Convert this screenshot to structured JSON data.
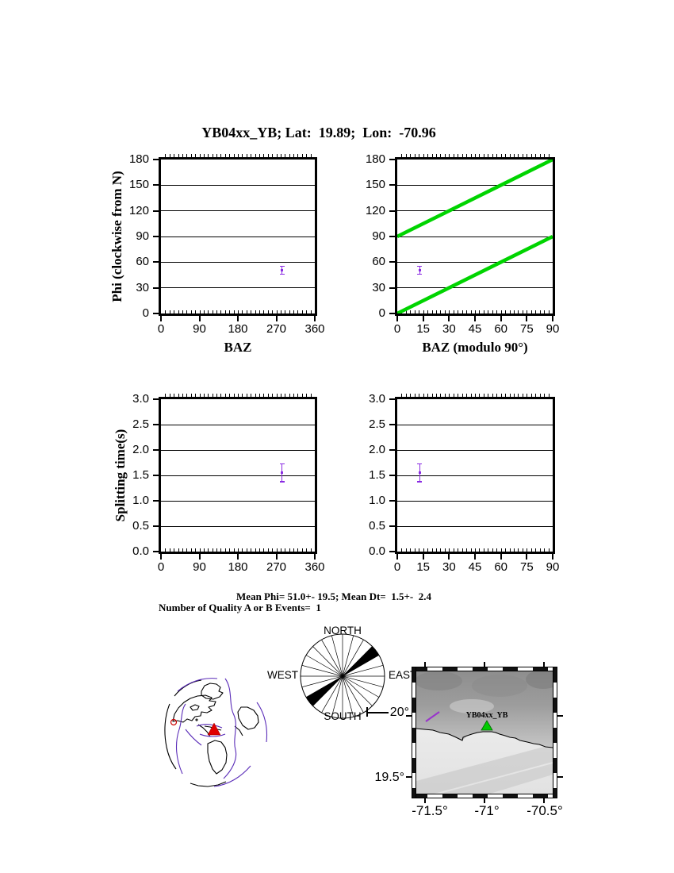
{
  "page_title": "YB04xx_YB; Lat:  19.89;  Lon:  -70.96",
  "colors": {
    "point": "#8A2BE2",
    "modulo_line": "#00D400",
    "plate_boundary": "#5A2CB8",
    "station_triangle_map": "#00CC00",
    "station_triangle_globe": "#E00000",
    "event_ring": "#CC0000",
    "map_splitting_bar": "#9933CC"
  },
  "chart_data": [
    {
      "type": "scatter",
      "title": "",
      "xlabel": "BAZ",
      "ylabel": "Phi (clockwise from N)",
      "xlim": [
        0,
        360
      ],
      "ylim": [
        0,
        180
      ],
      "xticks": [
        0,
        90,
        180,
        270,
        360
      ],
      "xtick_labels": [
        "0",
        "90",
        "180",
        "270",
        "360"
      ],
      "yticks": [
        0,
        30,
        60,
        90,
        120,
        150,
        180
      ],
      "ytick_labels": [
        "0",
        "30",
        "60",
        "90",
        "120",
        "150",
        "180"
      ],
      "grid": "horizontal-major",
      "points": [
        {
          "x": 283,
          "y": 50.5,
          "yerr": 4.5
        }
      ]
    },
    {
      "type": "scatter",
      "title": "",
      "xlabel": "BAZ (modulo 90°)",
      "ylabel": "",
      "xlim": [
        0,
        90
      ],
      "ylim": [
        0,
        180
      ],
      "xticks": [
        0,
        15,
        30,
        45,
        60,
        75,
        90
      ],
      "xtick_labels": [
        "0",
        "15",
        "30",
        "45",
        "60",
        "75",
        "90"
      ],
      "yticks": [
        0,
        30,
        60,
        90,
        120,
        150,
        180
      ],
      "ytick_labels": [
        "0",
        "30",
        "60",
        "90",
        "120",
        "150",
        "180"
      ],
      "grid": "horizontal-major",
      "lines": [
        {
          "x1": 0,
          "y1": 0,
          "x2": 90,
          "y2": 90
        },
        {
          "x1": 0,
          "y1": 90,
          "x2": 90,
          "y2": 180
        }
      ],
      "points": [
        {
          "x": 13,
          "y": 50.5,
          "yerr": 4.5
        }
      ]
    },
    {
      "type": "scatter",
      "title": "",
      "xlabel": "",
      "ylabel": "Splitting time(s)",
      "xlim": [
        0,
        360
      ],
      "ylim": [
        0,
        3
      ],
      "xticks": [
        0,
        90,
        180,
        270,
        360
      ],
      "xtick_labels": [
        "0",
        "90",
        "180",
        "270",
        "360"
      ],
      "yticks": [
        0,
        0.5,
        1,
        1.5,
        2,
        2.5,
        3
      ],
      "ytick_labels": [
        "0.0",
        "0.5",
        "1.0",
        "1.5",
        "2.0",
        "2.5",
        "3.0"
      ],
      "grid": "horizontal-major",
      "points": [
        {
          "x": 283,
          "y": 1.55,
          "yerr": 0.17
        }
      ]
    },
    {
      "type": "scatter",
      "title": "",
      "xlabel": "",
      "ylabel": "",
      "xlim": [
        0,
        90
      ],
      "ylim": [
        0,
        3
      ],
      "xticks": [
        0,
        15,
        30,
        45,
        60,
        75,
        90
      ],
      "xtick_labels": [
        "0",
        "15",
        "30",
        "45",
        "60",
        "75",
        "90"
      ],
      "yticks": [
        0,
        0.5,
        1,
        1.5,
        2,
        2.5,
        3
      ],
      "ytick_labels": [
        "0.0",
        "0.5",
        "1.0",
        "1.5",
        "2.0",
        "2.5",
        "3.0"
      ],
      "grid": "horizontal-major",
      "points": [
        {
          "x": 13,
          "y": 1.55,
          "yerr": 0.17
        }
      ]
    }
  ],
  "stats": {
    "line1": "Mean Phi= 51.0+- 19.5; Mean Dt=  1.5+-  2.4",
    "line2": "Number of Quality A or B Events=  1"
  },
  "rose": {
    "labels": {
      "north": "NORTH",
      "east": "EAST",
      "south": "SOUTH",
      "west": "WEST"
    },
    "spoke_step_deg": 15,
    "wedges": [
      {
        "from": 45,
        "to": 60
      },
      {
        "from": 225,
        "to": 240
      }
    ]
  },
  "map": {
    "xtick_labels": [
      "-71.5°",
      "-71°",
      "-70.5°"
    ],
    "ytick_labels": [
      "20°",
      "19.5°"
    ],
    "station_label": "YB04xx_YB"
  }
}
